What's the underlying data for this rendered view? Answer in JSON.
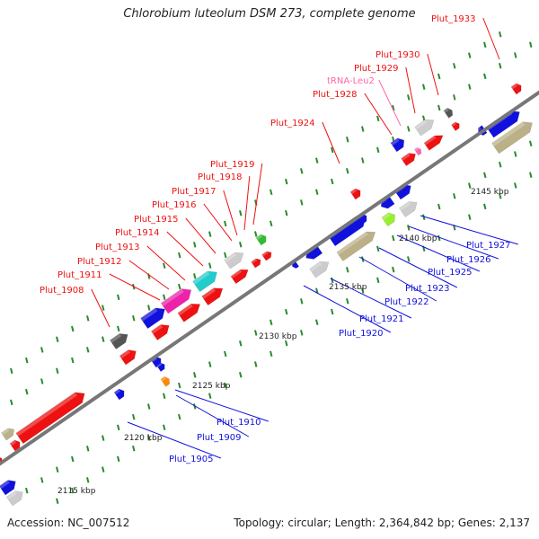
{
  "title": "Chlorobium luteolum DSM 273, complete genome",
  "footer": {
    "accession": "Accession: NC_007512",
    "summary": "Topology: circular; Length: 2,364,842 bp; Genes: 2,137"
  },
  "colors": {
    "red": "#ee1111",
    "blue": "#1111dd",
    "magenta": "#ee22aa",
    "cyan": "#22cccc",
    "olive": "#bbb088",
    "gray": "#cccccc",
    "darkgray": "#555555",
    "green": "#33bb33",
    "lime": "#99ee33",
    "orange": "#ff8800",
    "tick": "#2a8a2a",
    "trna": "#ff66aa"
  },
  "scale_labels": [
    "2115 kbp",
    "2120 kbp",
    "2125 kbp",
    "2130 kbp",
    "2135 kbp",
    "2140 kbp",
    "2145 kbp"
  ],
  "labels": [
    "Plut_1933",
    "Plut_1930",
    "Plut_1929",
    "tRNA-Leu2",
    "Plut_1928",
    "Plut_1924",
    "Plut_1919",
    "Plut_1918",
    "Plut_1917",
    "Plut_1916",
    "Plut_1915",
    "Plut_1914",
    "Plut_1913",
    "Plut_1912",
    "Plut_1911",
    "Plut_1908",
    "Plut_1927",
    "Plut_1926",
    "Plut_1925",
    "Plut_1923",
    "Plut_1922",
    "Plut_1921",
    "Plut_1920",
    "Plut_1910",
    "Plut_1909",
    "Plut_1905"
  ]
}
